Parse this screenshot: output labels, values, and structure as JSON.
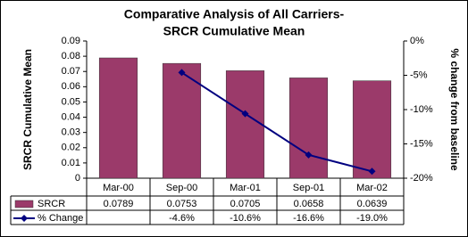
{
  "chart_data": {
    "type": "bar",
    "title": [
      "Comparative Analysis of All Carriers-",
      "SRCR Cumulative Mean"
    ],
    "ylabel": "SRCR Cumulative Mean",
    "y2label": "% change from baseline",
    "categories": [
      "Mar-00",
      "Sep-00",
      "Mar-01",
      "Sep-01",
      "Mar-02"
    ],
    "series": [
      {
        "name": "SRCR",
        "type": "bar",
        "color": "#9b3a6a",
        "values": [
          0.0789,
          0.0753,
          0.0705,
          0.0658,
          0.0639
        ]
      },
      {
        "name": "% Change",
        "type": "line",
        "axis": "y2",
        "color": "#000080",
        "values": [
          null,
          -4.6,
          -10.6,
          -16.6,
          -19.0
        ],
        "value_labels": [
          null,
          "-4.6%",
          "-10.6%",
          "-16.6%",
          "-19.0%"
        ]
      }
    ],
    "ylim": [
      0,
      0.09
    ],
    "yticks": [
      0,
      0.01,
      0.02,
      0.03,
      0.04,
      0.05,
      0.06,
      0.07,
      0.08,
      0.09
    ],
    "y2lim": [
      -20,
      0
    ],
    "y2ticks": [
      {
        "value": 0,
        "label": "0%"
      },
      {
        "value": -5,
        "label": "-5%"
      },
      {
        "value": -10,
        "label": "-10%"
      },
      {
        "value": -15,
        "label": "-15%"
      },
      {
        "value": -20,
        "label": "-20%"
      }
    ],
    "grid": false,
    "data_table": true
  }
}
